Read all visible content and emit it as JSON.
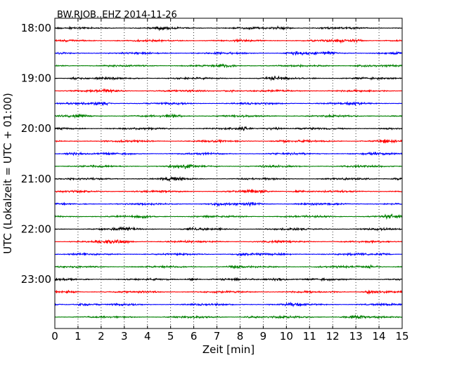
{
  "chart_data": {
    "type": "line",
    "title": "BW.RJOB..EHZ 2014-11-26",
    "xlabel": "Zeit  [min]",
    "ylabel": "UTC (Lokalzeit = UTC + 01:00)",
    "xlim": [
      0,
      15
    ],
    "x_ticks": [
      "0",
      "1",
      "2",
      "3",
      "4",
      "5",
      "6",
      "7",
      "8",
      "9",
      "10",
      "11",
      "12",
      "13",
      "14",
      "15"
    ],
    "y_ticks": [
      "18:00",
      "19:00",
      "20:00",
      "21:00",
      "22:00",
      "23:00"
    ],
    "grid": "vertical dotted at each minute",
    "trace_colors": [
      "#000000",
      "#ff0000",
      "#0000ff",
      "#008000"
    ],
    "traces": [
      "18:00",
      "18:15",
      "18:30",
      "18:45",
      "19:00",
      "19:15",
      "19:30",
      "19:45",
      "20:00",
      "20:15",
      "20:30",
      "20:45",
      "21:00",
      "21:15",
      "21:30",
      "21:45",
      "22:00",
      "22:15",
      "22:30",
      "22:45",
      "23:00",
      "23:15",
      "23:30",
      "23:45"
    ]
  }
}
